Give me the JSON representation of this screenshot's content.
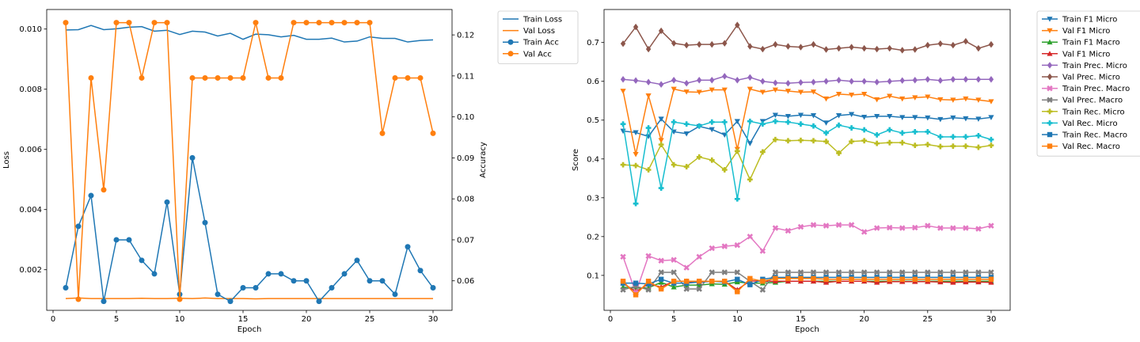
{
  "chart_data": [
    {
      "type": "line",
      "x": [
        1,
        2,
        3,
        4,
        5,
        6,
        7,
        8,
        9,
        10,
        11,
        12,
        13,
        14,
        15,
        16,
        17,
        18,
        19,
        20,
        21,
        22,
        23,
        24,
        25,
        26,
        27,
        28,
        29,
        30
      ],
      "xlabel": "Epoch",
      "xticks": [
        "0",
        "5",
        "10",
        "15",
        "20",
        "25",
        "30"
      ],
      "xlim": [
        -0.5,
        31.5
      ],
      "left_axis": {
        "label": "Loss",
        "lim": [
          0.00065,
          0.01065
        ],
        "ticks": [
          "0.002",
          "0.004",
          "0.006",
          "0.008",
          "0.010"
        ],
        "tick_values": [
          0.002,
          0.004,
          0.006,
          0.008,
          0.01
        ]
      },
      "right_axis": {
        "label": "Accuracy",
        "lim": [
          0.0528,
          0.1262
        ],
        "ticks": [
          "0.06",
          "0.07",
          "0.08",
          "0.09",
          "0.10",
          "0.11",
          "0.12"
        ],
        "tick_values": [
          0.06,
          0.07,
          0.08,
          0.09,
          0.1,
          0.11,
          0.12
        ]
      },
      "series": [
        {
          "name": "Train Loss",
          "axis": "left",
          "color": "#1f77b4",
          "marker": "none",
          "values": [
            0.00997,
            0.00998,
            0.01012,
            0.00998,
            0.01001,
            0.01006,
            0.01008,
            0.00993,
            0.00996,
            0.00982,
            0.00993,
            0.0099,
            0.00977,
            0.00986,
            0.00966,
            0.00983,
            0.00981,
            0.00974,
            0.00979,
            0.00966,
            0.00966,
            0.0097,
            0.00957,
            0.0096,
            0.00974,
            0.00969,
            0.00969,
            0.00957,
            0.00962,
            0.00964
          ]
        },
        {
          "name": "Val Loss",
          "axis": "left",
          "color": "#ff7f0e",
          "marker": "none",
          "values": [
            0.00104,
            0.00106,
            0.00104,
            0.00104,
            0.00104,
            0.00104,
            0.00105,
            0.00104,
            0.00104,
            0.00105,
            0.00104,
            0.00106,
            0.00104,
            0.00104,
            0.00104,
            0.00103,
            0.00104,
            0.00104,
            0.00104,
            0.00104,
            0.00104,
            0.00104,
            0.00104,
            0.00104,
            0.00104,
            0.00104,
            0.00104,
            0.00104,
            0.00104,
            0.00104
          ]
        },
        {
          "name": "Train Acc",
          "axis": "right",
          "color": "#1f77b4",
          "marker": "circle",
          "values": [
            0.0583,
            0.0733,
            0.0808,
            0.055,
            0.07,
            0.07,
            0.065,
            0.0617,
            0.0792,
            0.0567,
            0.09,
            0.0742,
            0.0567,
            0.055,
            0.0583,
            0.0583,
            0.0617,
            0.0617,
            0.06,
            0.06,
            0.055,
            0.0583,
            0.0617,
            0.065,
            0.06,
            0.06,
            0.0567,
            0.0683,
            0.0625,
            0.0583
          ]
        },
        {
          "name": "Val Acc",
          "axis": "right",
          "color": "#ff7f0e",
          "marker": "circle",
          "values": [
            0.123,
            0.0555,
            0.1095,
            0.0822,
            0.123,
            0.123,
            0.1095,
            0.123,
            0.123,
            0.0555,
            0.1095,
            0.1095,
            0.1095,
            0.1095,
            0.1095,
            0.123,
            0.1095,
            0.1095,
            0.123,
            0.123,
            0.123,
            0.123,
            0.123,
            0.123,
            0.123,
            0.096,
            0.1095,
            0.1095,
            0.1095,
            0.096
          ]
        }
      ],
      "legend_position": "outside-right"
    },
    {
      "type": "line",
      "x": [
        1,
        2,
        3,
        4,
        5,
        6,
        7,
        8,
        9,
        10,
        11,
        12,
        13,
        14,
        15,
        16,
        17,
        18,
        19,
        20,
        21,
        22,
        23,
        24,
        25,
        26,
        27,
        28,
        29,
        30
      ],
      "xlabel": "Epoch",
      "ylabel": "Score",
      "xticks": [
        "0",
        "5",
        "10",
        "15",
        "20",
        "25",
        "30"
      ],
      "xlim": [
        -0.5,
        31.5
      ],
      "ylim": [
        0.01,
        0.785
      ],
      "yticks": [
        "0.1",
        "0.2",
        "0.3",
        "0.4",
        "0.5",
        "0.6",
        "0.7"
      ],
      "ytick_values": [
        0.1,
        0.2,
        0.3,
        0.4,
        0.5,
        0.6,
        0.7
      ],
      "series": [
        {
          "name": "Train F1 Micro",
          "color": "#1f77b4",
          "marker": "tri_down",
          "values": [
            0.472,
            0.468,
            0.458,
            0.503,
            0.47,
            0.465,
            0.484,
            0.476,
            0.462,
            0.497,
            0.44,
            0.497,
            0.513,
            0.51,
            0.513,
            0.512,
            0.493,
            0.512,
            0.515,
            0.508,
            0.51,
            0.51,
            0.507,
            0.507,
            0.506,
            0.502,
            0.506,
            0.504,
            0.503,
            0.507
          ]
        },
        {
          "name": "Val F1 Micro",
          "color": "#ff7f0e",
          "marker": "tri_down",
          "values": [
            0.575,
            0.412,
            0.563,
            0.448,
            0.58,
            0.573,
            0.572,
            0.578,
            0.578,
            0.425,
            0.58,
            0.572,
            0.578,
            0.575,
            0.572,
            0.573,
            0.555,
            0.567,
            0.565,
            0.567,
            0.553,
            0.562,
            0.555,
            0.558,
            0.56,
            0.553,
            0.552,
            0.555,
            0.552,
            0.548
          ]
        },
        {
          "name": "Train F1 Macro",
          "color": "#2ca02c",
          "marker": "tri_up",
          "values": [
            0.07,
            0.067,
            0.068,
            0.082,
            0.07,
            0.075,
            0.075,
            0.078,
            0.077,
            0.083,
            0.08,
            0.08,
            0.082,
            0.085,
            0.085,
            0.085,
            0.085,
            0.085,
            0.085,
            0.085,
            0.085,
            0.085,
            0.085,
            0.085,
            0.085,
            0.085,
            0.085,
            0.085,
            0.085,
            0.085
          ]
        },
        {
          "name": "Val F1 Micro",
          "color": "#d62728",
          "marker": "tri_up",
          "values": [
            0.08,
            0.058,
            0.078,
            0.07,
            0.085,
            0.085,
            0.082,
            0.085,
            0.085,
            0.063,
            0.086,
            0.085,
            0.085,
            0.085,
            0.085,
            0.085,
            0.082,
            0.085,
            0.085,
            0.085,
            0.082,
            0.084,
            0.084,
            0.084,
            0.084,
            0.083,
            0.082,
            0.083,
            0.083,
            0.082
          ]
        },
        {
          "name": "Train Prec. Micro",
          "color": "#9467bd",
          "marker": "diamond",
          "values": [
            0.605,
            0.602,
            0.598,
            0.592,
            0.603,
            0.595,
            0.603,
            0.603,
            0.613,
            0.603,
            0.61,
            0.6,
            0.596,
            0.595,
            0.597,
            0.598,
            0.6,
            0.603,
            0.6,
            0.6,
            0.598,
            0.6,
            0.602,
            0.603,
            0.605,
            0.602,
            0.605,
            0.605,
            0.605,
            0.605
          ]
        },
        {
          "name": "Val Prec. Micro",
          "color": "#8c564b",
          "marker": "diamond",
          "values": [
            0.697,
            0.74,
            0.683,
            0.73,
            0.698,
            0.693,
            0.695,
            0.695,
            0.698,
            0.745,
            0.69,
            0.683,
            0.695,
            0.69,
            0.688,
            0.695,
            0.682,
            0.685,
            0.688,
            0.685,
            0.683,
            0.685,
            0.68,
            0.682,
            0.693,
            0.697,
            0.693,
            0.703,
            0.685,
            0.695
          ]
        },
        {
          "name": "Train Prec. Macro",
          "color": "#e377c2",
          "marker": "x",
          "values": [
            0.148,
            0.055,
            0.15,
            0.138,
            0.14,
            0.12,
            0.148,
            0.17,
            0.175,
            0.178,
            0.2,
            0.163,
            0.222,
            0.215,
            0.225,
            0.23,
            0.228,
            0.23,
            0.23,
            0.212,
            0.222,
            0.223,
            0.222,
            0.223,
            0.228,
            0.222,
            0.222,
            0.222,
            0.22,
            0.228
          ]
        },
        {
          "name": "Val Prec. Macro",
          "color": "#7f7f7f",
          "marker": "x",
          "values": [
            0.063,
            0.072,
            0.063,
            0.108,
            0.108,
            0.065,
            0.065,
            0.108,
            0.108,
            0.108,
            0.085,
            0.063,
            0.108,
            0.108,
            0.108,
            0.108,
            0.108,
            0.108,
            0.108,
            0.108,
            0.108,
            0.108,
            0.108,
            0.108,
            0.108,
            0.108,
            0.108,
            0.108,
            0.108,
            0.108
          ]
        },
        {
          "name": "Train Rec. Micro",
          "color": "#bcbd22",
          "marker": "plus",
          "values": [
            0.385,
            0.383,
            0.372,
            0.437,
            0.385,
            0.38,
            0.405,
            0.397,
            0.372,
            0.42,
            0.347,
            0.418,
            0.45,
            0.447,
            0.448,
            0.447,
            0.445,
            0.415,
            0.445,
            0.447,
            0.44,
            0.442,
            0.442,
            0.435,
            0.437,
            0.432,
            0.433,
            0.433,
            0.43,
            0.435
          ]
        },
        {
          "name": "Val Rec. Micro",
          "color": "#17becf",
          "marker": "plus",
          "values": [
            0.49,
            0.285,
            0.48,
            0.325,
            0.495,
            0.49,
            0.485,
            0.495,
            0.495,
            0.297,
            0.497,
            0.49,
            0.497,
            0.495,
            0.49,
            0.485,
            0.467,
            0.487,
            0.48,
            0.475,
            0.462,
            0.475,
            0.467,
            0.47,
            0.47,
            0.457,
            0.457,
            0.457,
            0.46,
            0.45
          ]
        },
        {
          "name": "Train Rec. Macro",
          "color": "#1f77b4",
          "marker": "square",
          "values": [
            0.08,
            0.08,
            0.078,
            0.09,
            0.08,
            0.08,
            0.083,
            0.085,
            0.083,
            0.09,
            0.076,
            0.09,
            0.095,
            0.095,
            0.095,
            0.095,
            0.095,
            0.095,
            0.095,
            0.095,
            0.095,
            0.095,
            0.095,
            0.095,
            0.095,
            0.095,
            0.095,
            0.095,
            0.095,
            0.095
          ]
        },
        {
          "name": "Val Rec. Macro",
          "color": "#ff7f0e",
          "marker": "square",
          "values": [
            0.085,
            0.05,
            0.085,
            0.065,
            0.085,
            0.085,
            0.085,
            0.085,
            0.085,
            0.058,
            0.092,
            0.085,
            0.092,
            0.092,
            0.092,
            0.092,
            0.09,
            0.09,
            0.09,
            0.09,
            0.09,
            0.09,
            0.09,
            0.09,
            0.09,
            0.09,
            0.09,
            0.09,
            0.09,
            0.09
          ]
        }
      ],
      "legend_position": "outside-right"
    }
  ]
}
